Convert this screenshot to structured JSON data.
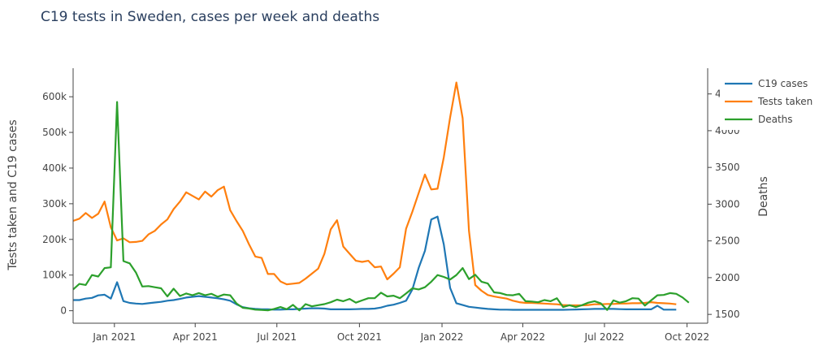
{
  "chart_data": {
    "type": "line",
    "title": "C19 tests in Sweden, cases per week and deaths",
    "xlabel": "",
    "ylabel": "Tests taken and C19 cases",
    "y2label": "Deaths",
    "x_start": "2020-11-16",
    "x_step_days": 7,
    "x_ticks": [
      "Jan 2021",
      "Apr 2021",
      "Jul 2021",
      "Oct 2021",
      "Jan 2022",
      "Apr 2022",
      "Jul 2022",
      "Oct 2022"
    ],
    "x_tick_dates": [
      "2021-01-01",
      "2021-04-01",
      "2021-07-01",
      "2021-10-01",
      "2022-01-01",
      "2022-04-01",
      "2022-07-01",
      "2022-10-01"
    ],
    "xlim": [
      "2020-11-16",
      "2022-10-24"
    ],
    "ylim": [
      -35000,
      680000
    ],
    "y_ticks": [
      0,
      100000,
      200000,
      300000,
      400000,
      500000,
      600000
    ],
    "y_tick_labels": [
      "0",
      "100k",
      "200k",
      "300k",
      "400k",
      "500k",
      "600k"
    ],
    "y2lim": [
      1380,
      4850
    ],
    "y2_ticks": [
      1500,
      2000,
      2500,
      3000,
      3500,
      4000,
      4500
    ],
    "y2_tick_labels": [
      "1500",
      "2000",
      "2500",
      "3000",
      "3500",
      "4000",
      "4500"
    ],
    "legend_position": "top-right",
    "series": [
      {
        "name": "C19 cases",
        "axis": "left",
        "color": "#1f77b4",
        "values": [
          30000,
          30000,
          34000,
          36000,
          43000,
          45000,
          34000,
          80000,
          27000,
          22000,
          20000,
          19000,
          21000,
          23000,
          25000,
          28000,
          30000,
          33000,
          37000,
          39000,
          41000,
          39000,
          37000,
          35000,
          32000,
          28000,
          18000,
          10000,
          7000,
          5000,
          4000,
          4000,
          3000,
          3000,
          4000,
          4000,
          5000,
          6000,
          7000,
          7000,
          6000,
          4000,
          4000,
          4000,
          4000,
          4500,
          5000,
          5000,
          6000,
          9000,
          14000,
          17000,
          22000,
          28000,
          60000,
          120000,
          168000,
          256000,
          264000,
          186000,
          64000,
          21000,
          16000,
          11000,
          9000,
          7000,
          5000,
          4000,
          3000,
          3000,
          2500,
          2500,
          2500,
          2500,
          2500,
          2500,
          2500,
          2500,
          2500,
          3000,
          3500,
          4000,
          4500,
          5000,
          5000,
          5000,
          5000,
          4500,
          4000,
          4000,
          4000,
          4000,
          4000,
          14000,
          3000,
          3000,
          3000
        ]
      },
      {
        "name": "Tests taken",
        "axis": "left",
        "color": "#ff7f0e",
        "values": [
          252000,
          258000,
          274000,
          260000,
          272000,
          306000,
          234000,
          197000,
          203000,
          192000,
          193000,
          196000,
          214000,
          224000,
          242000,
          256000,
          285000,
          306000,
          332000,
          322000,
          312000,
          334000,
          320000,
          338000,
          348000,
          282000,
          252000,
          224000,
          186000,
          152000,
          148000,
          103000,
          103000,
          82000,
          74000,
          76000,
          78000,
          90000,
          104000,
          118000,
          160000,
          228000,
          254000,
          180000,
          160000,
          140000,
          137000,
          140000,
          122000,
          124000,
          88000,
          104000,
          122000,
          230000,
          278000,
          330000,
          382000,
          340000,
          342000,
          430000,
          542000,
          640000,
          540000,
          224000,
          72000,
          56000,
          44000,
          40000,
          37000,
          34000,
          28000,
          24000,
          22000,
          22000,
          21000,
          20000,
          19000,
          18000,
          16000,
          15000,
          15000,
          15000,
          16000,
          18000,
          18000,
          19000,
          19000,
          20000,
          20000,
          21000,
          21000,
          22000,
          24000,
          22000,
          21000,
          20000,
          18000
        ]
      },
      {
        "name": "Deaths",
        "axis": "right",
        "color": "#2ca02c",
        "values": [
          1840,
          1915,
          1900,
          2035,
          2015,
          2130,
          2140,
          4390,
          2225,
          2195,
          2070,
          1880,
          1885,
          1870,
          1855,
          1745,
          1850,
          1750,
          1785,
          1760,
          1790,
          1760,
          1780,
          1740,
          1770,
          1760,
          1650,
          1590,
          1580,
          1565,
          1560,
          1555,
          1575,
          1600,
          1570,
          1630,
          1555,
          1640,
          1610,
          1625,
          1640,
          1665,
          1700,
          1680,
          1710,
          1660,
          1690,
          1720,
          1720,
          1795,
          1745,
          1755,
          1720,
          1785,
          1855,
          1840,
          1870,
          1945,
          2035,
          2010,
          1975,
          2035,
          2130,
          1980,
          2040,
          1945,
          1920,
          1800,
          1790,
          1765,
          1760,
          1780,
          1680,
          1675,
          1665,
          1695,
          1680,
          1720,
          1600,
          1625,
          1600,
          1625,
          1660,
          1680,
          1650,
          1560,
          1690,
          1660,
          1680,
          1720,
          1715,
          1620,
          1690,
          1760,
          1765,
          1790,
          1780,
          1730,
          1660
        ]
      }
    ]
  }
}
